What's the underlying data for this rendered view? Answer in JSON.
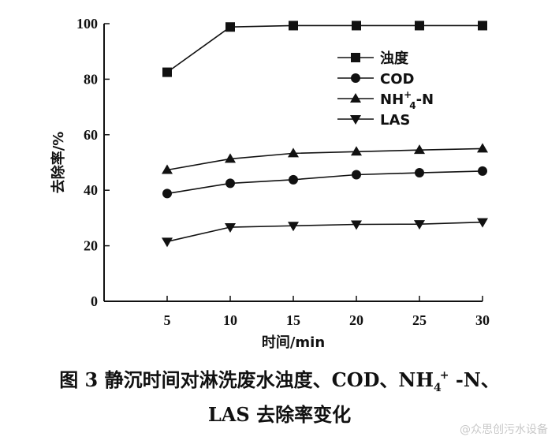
{
  "chart_data": {
    "type": "line",
    "xlabel": "时间/min",
    "ylabel": "去除率/%",
    "x": [
      5,
      10,
      15,
      20,
      25,
      30
    ],
    "xlim": [
      0,
      30
    ],
    "ylim": [
      0,
      100
    ],
    "xticks": [
      5,
      10,
      15,
      20,
      25,
      30
    ],
    "yticks": [
      0,
      20,
      40,
      60,
      80,
      100
    ],
    "grid": false,
    "legend_position": "top-right",
    "series": [
      {
        "name": "浊度",
        "marker": "square",
        "values": [
          82.5,
          98.8,
          99.3,
          99.3,
          99.3,
          99.3
        ]
      },
      {
        "name": "COD",
        "marker": "circle",
        "values": [
          38.8,
          42.5,
          43.8,
          45.6,
          46.3,
          46.9
        ]
      },
      {
        "name": "NH4+-N",
        "name_parts": {
          "base": "NH",
          "sub": "4",
          "sup": "+",
          "suffix": "-N"
        },
        "marker": "triangle-up",
        "values": [
          47.3,
          51.3,
          53.3,
          53.9,
          54.5,
          55.0
        ]
      },
      {
        "name": "LAS",
        "marker": "triangle-down",
        "values": [
          21.5,
          26.7,
          27.2,
          27.7,
          27.8,
          28.5
        ]
      }
    ]
  },
  "caption": {
    "line1_prefix": "图 3    静沉时间对淋洗废水浊度、COD、NH",
    "line1_sub": "4",
    "line1_sup": "+",
    "line1_suffix": " -N、",
    "line2": "LAS 去除率变化"
  },
  "watermark": "@众思创污水设备"
}
